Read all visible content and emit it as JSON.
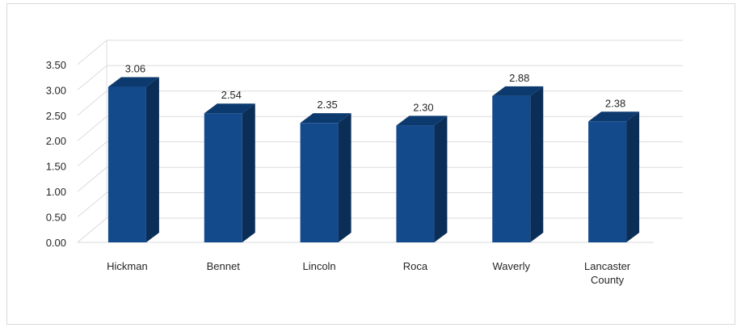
{
  "chart_data": {
    "type": "bar",
    "style": "3d-column",
    "categories": [
      "Hickman",
      "Bennet",
      "Lincoln",
      "Roca",
      "Waverly",
      "Lancaster County"
    ],
    "values": [
      3.06,
      2.54,
      2.35,
      2.3,
      2.88,
      2.38
    ],
    "data_labels": [
      "3.06",
      "2.54",
      "2.35",
      "2.30",
      "2.88",
      "2.38"
    ],
    "y_ticks": [
      "0.00",
      "0.50",
      "1.00",
      "1.50",
      "2.00",
      "2.50",
      "3.00",
      "3.50"
    ],
    "ylim": [
      0,
      3.5
    ],
    "title": "",
    "xlabel": "",
    "ylabel": "",
    "grid": true,
    "legend": "none",
    "colors": {
      "bar_front": "#124a8c",
      "bar_side": "#0b2e57",
      "bar_top": "#0d3a6e",
      "grid": "#dcdcdc",
      "floor": "#d9d9d9",
      "text": "#262626"
    }
  }
}
